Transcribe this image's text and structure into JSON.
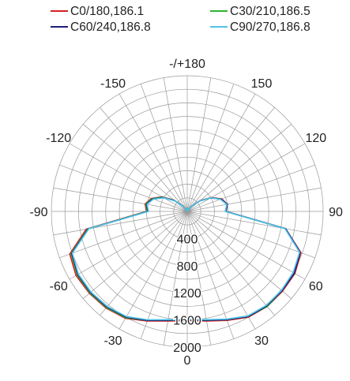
{
  "chart_data": {
    "type": "polar-line",
    "legend": [
      {
        "label": "C0/180,186.1",
        "color": "#d42020"
      },
      {
        "label": "C30/210,186.5",
        "color": "#2db52d"
      },
      {
        "label": "C60/240,186.8",
        "color": "#1e1e78"
      },
      {
        "label": "C90/270,186.8",
        "color": "#4fc3e8"
      }
    ],
    "angle_labels": [
      {
        "label": "-/+180",
        "angle": 180
      },
      {
        "label": "150",
        "angle": 150
      },
      {
        "label": "120",
        "angle": 120
      },
      {
        "label": "90",
        "angle": 90
      },
      {
        "label": "60",
        "angle": 60
      },
      {
        "label": "30",
        "angle": 30
      },
      {
        "label": "0",
        "angle": 0
      },
      {
        "label": "-30",
        "angle": -30
      },
      {
        "label": "-60",
        "angle": -60
      },
      {
        "label": "-90",
        "angle": -90
      },
      {
        "label": "-120",
        "angle": -120
      },
      {
        "label": "-150",
        "angle": -150
      }
    ],
    "radial_labels": [
      "400",
      "800",
      "1200",
      "1600",
      "2000"
    ],
    "radial_values": [
      400,
      800,
      1200,
      1600,
      2000
    ],
    "rmax": 2000,
    "angle_grid_step": 10,
    "radial_grid_step": 200,
    "angles": [
      0,
      10,
      20,
      30,
      40,
      50,
      60,
      70,
      80,
      90,
      100,
      110,
      120,
      130,
      140,
      150,
      160,
      170,
      180
    ],
    "series": [
      {
        "name": "C0/180,186.1",
        "color": "#d42020",
        "plus": [
          1610,
          1640,
          1710,
          1800,
          1830,
          1830,
          1830,
          1780,
          1470,
          570,
          600,
          540,
          410,
          250,
          110,
          20,
          10,
          40,
          40
        ],
        "minus": [
          1610,
          1640,
          1720,
          1820,
          1860,
          1880,
          1890,
          1840,
          1510,
          600,
          630,
          560,
          430,
          260,
          110,
          20,
          10,
          40,
          40
        ]
      },
      {
        "name": "C30/210,186.5",
        "color": "#2db52d",
        "plus": [
          1600,
          1630,
          1700,
          1790,
          1830,
          1820,
          1820,
          1760,
          1470,
          560,
          600,
          530,
          400,
          240,
          105,
          20,
          10,
          40,
          40
        ],
        "minus": [
          1600,
          1630,
          1710,
          1810,
          1850,
          1870,
          1870,
          1820,
          1490,
          590,
          620,
          550,
          420,
          250,
          105,
          20,
          10,
          40,
          40
        ]
      },
      {
        "name": "C60/240,186.8",
        "color": "#1e1e78",
        "plus": [
          1600,
          1630,
          1700,
          1790,
          1820,
          1820,
          1820,
          1770,
          1470,
          570,
          600,
          530,
          400,
          240,
          105,
          20,
          10,
          40,
          40
        ],
        "minus": [
          1600,
          1630,
          1710,
          1800,
          1840,
          1860,
          1860,
          1810,
          1480,
          580,
          610,
          540,
          410,
          250,
          105,
          20,
          10,
          40,
          40
        ]
      },
      {
        "name": "C90/270,186.8",
        "color": "#4fc3e8",
        "plus": [
          1590,
          1620,
          1690,
          1780,
          1810,
          1810,
          1800,
          1760,
          1460,
          560,
          590,
          520,
          400,
          240,
          100,
          20,
          10,
          40,
          40
        ],
        "minus": [
          1590,
          1620,
          1700,
          1790,
          1830,
          1850,
          1850,
          1800,
          1470,
          570,
          600,
          530,
          400,
          240,
          100,
          20,
          10,
          40,
          40
        ]
      }
    ]
  }
}
